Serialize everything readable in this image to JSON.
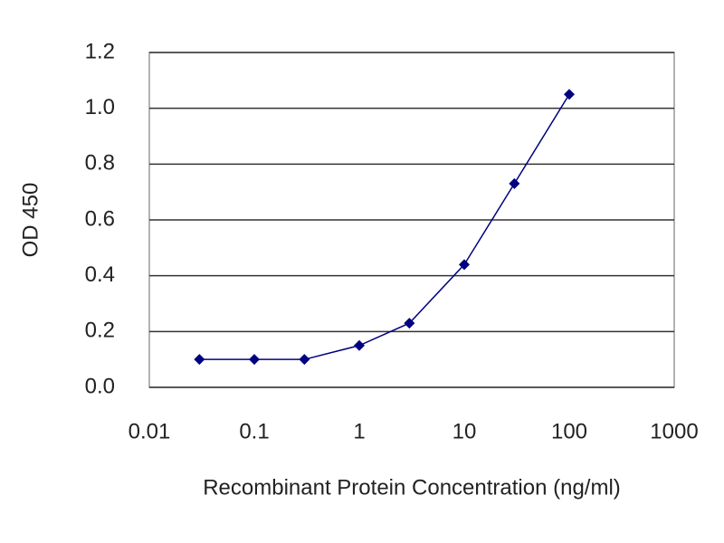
{
  "chart_data": {
    "type": "line",
    "xscale": "log",
    "xlabel": "Recombinant Protein Concentration (ng/ml)",
    "ylabel": "OD 450",
    "x": [
      0.03,
      0.1,
      0.3,
      1,
      3,
      10,
      30,
      100
    ],
    "series": [
      {
        "color": "#000080",
        "values": [
          0.1,
          0.1,
          0.1,
          0.15,
          0.23,
          0.44,
          0.73,
          1.05
        ]
      }
    ],
    "xlim": [
      0.01,
      1000
    ],
    "xticks": [
      0.01,
      0.1,
      1,
      10,
      100,
      1000
    ],
    "ylim": [
      0,
      1.2
    ],
    "yticks": [
      {
        "value": 0,
        "label": "0.0"
      },
      0.2,
      0.4,
      0.6,
      0.8,
      {
        "value": 1,
        "label": "1.0"
      },
      1.2
    ],
    "grid": true
  }
}
